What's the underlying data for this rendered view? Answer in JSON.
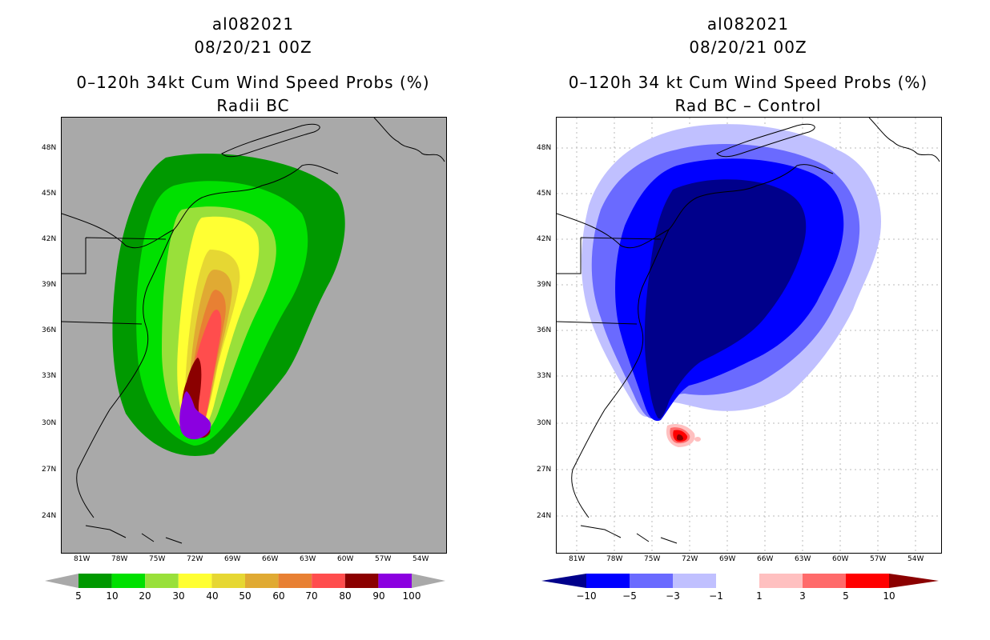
{
  "left_panel": {
    "storm_id": "al082021",
    "datetime": "08/20/21 00Z",
    "title": "0–120h 34kt Cum Wind Speed Probs (%)",
    "subtitle": "Radii BC",
    "background_color": "#a9a9a9",
    "lat_labels": [
      "48N",
      "45N",
      "42N",
      "39N",
      "36N",
      "33N",
      "30N",
      "27N",
      "24N"
    ],
    "lon_labels": [
      "81W",
      "78W",
      "75W",
      "72W",
      "69W",
      "66W",
      "63W",
      "60W",
      "57W",
      "54W"
    ],
    "colorbar": {
      "labels": [
        "5",
        "10",
        "20",
        "30",
        "40",
        "50",
        "60",
        "70",
        "80",
        "90",
        "100"
      ],
      "colors": [
        "#009900",
        "#00e000",
        "#99e03a",
        "#ffff33",
        "#e6d733",
        "#e0aa33",
        "#e88033",
        "#ff4d4d",
        "#8b0000",
        "#8b00e0"
      ],
      "end_color": "#a9a9a9"
    }
  },
  "right_panel": {
    "storm_id": "al082021",
    "datetime": "08/20/21 00Z",
    "title": "0–120h 34 kt Cum Wind Speed Probs (%)",
    "subtitle": "Rad BC – Control",
    "background_color": "#ffffff",
    "lat_labels": [
      "48N",
      "45N",
      "42N",
      "39N",
      "36N",
      "33N",
      "30N",
      "27N",
      "24N"
    ],
    "lon_labels": [
      "81W",
      "78W",
      "75W",
      "72W",
      "69W",
      "66W",
      "63W",
      "60W",
      "57W",
      "54W"
    ],
    "colorbar": {
      "labels": [
        "−10",
        "−5",
        "−3",
        "−1",
        "1",
        "3",
        "5",
        "10"
      ],
      "colors": [
        "#00008b",
        "#0000ff",
        "#6a6aff",
        "#c0c0ff",
        "#ffffff",
        "#ffc0c0",
        "#ff6a6a",
        "#ff0000",
        "#8b0000"
      ]
    }
  }
}
